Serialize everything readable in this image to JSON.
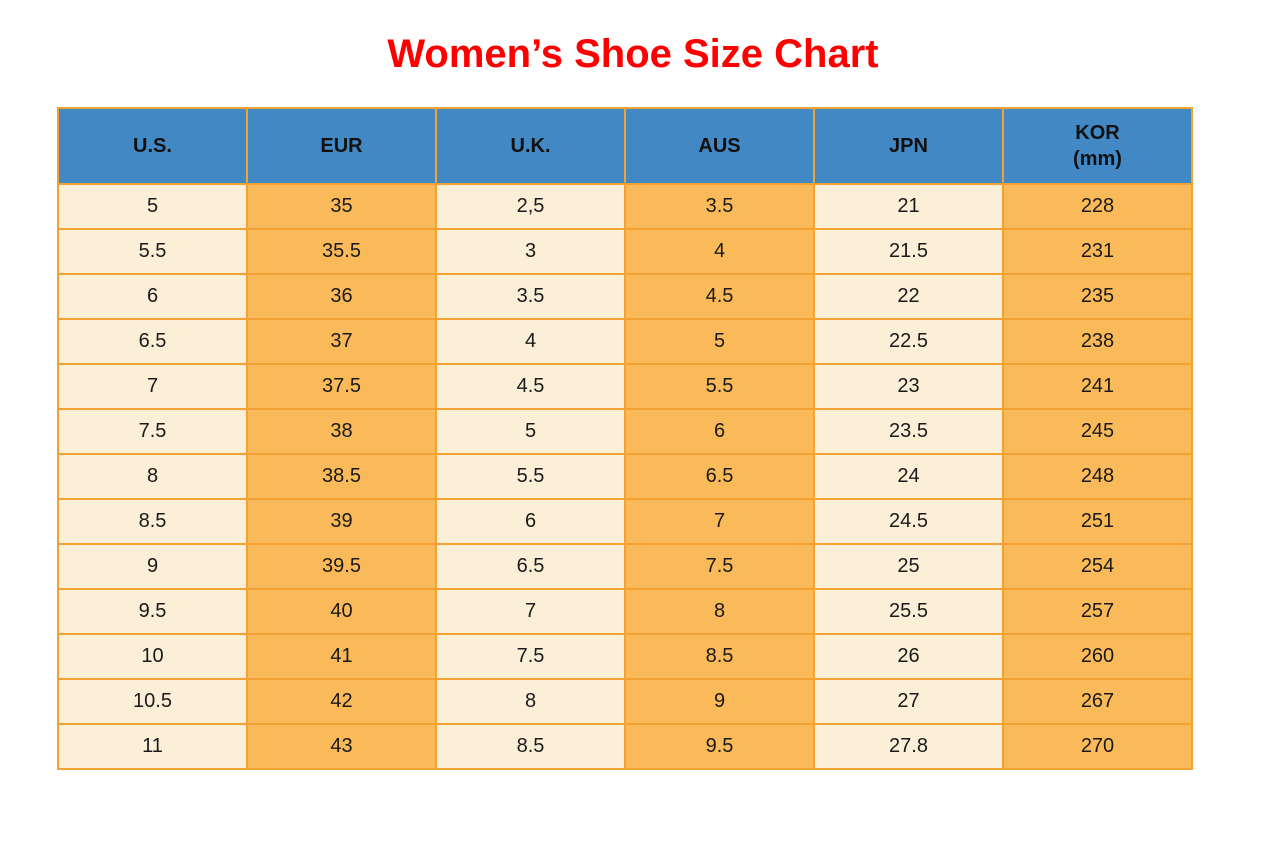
{
  "title": "Women’s Shoe Size Chart",
  "headers": {
    "us": "U.S.",
    "eur": "EUR",
    "uk": "U.K.",
    "aus": "AUS",
    "jpn": "JPN",
    "kor_line1": "KOR",
    "kor_line2": "(mm)"
  },
  "colors": {
    "title_red": "#FF0000",
    "header_blue": "#4288C4",
    "cell_cream": "#FCEFD8",
    "cell_orange": "#FBBA59",
    "border_orange": "#F2A233",
    "text_dark": "#1A1A1A"
  },
  "chart_data": {
    "type": "table",
    "title": "Women’s Shoe Size Chart",
    "columns": [
      "U.S.",
      "EUR",
      "U.K.",
      "AUS",
      "JPN",
      "KOR (mm)"
    ],
    "rows": [
      [
        "5",
        "35",
        "2,5",
        "3.5",
        "21",
        "228"
      ],
      [
        "5.5",
        "35.5",
        "3",
        "4",
        "21.5",
        "231"
      ],
      [
        "6",
        "36",
        "3.5",
        "4.5",
        "22",
        "235"
      ],
      [
        "6.5",
        "37",
        "4",
        "5",
        "22.5",
        "238"
      ],
      [
        "7",
        "37.5",
        "4.5",
        "5.5",
        "23",
        "241"
      ],
      [
        "7.5",
        "38",
        "5",
        "6",
        "23.5",
        "245"
      ],
      [
        "8",
        "38.5",
        "5.5",
        "6.5",
        "24",
        "248"
      ],
      [
        "8.5",
        "39",
        "6",
        "7",
        "24.5",
        "251"
      ],
      [
        "9",
        "39.5",
        "6.5",
        "7.5",
        "25",
        "254"
      ],
      [
        "9.5",
        "40",
        "7",
        "8",
        "25.5",
        "257"
      ],
      [
        "10",
        "41",
        "7.5",
        "8.5",
        "26",
        "260"
      ],
      [
        "10.5",
        "42",
        "8",
        "9",
        "27",
        "267"
      ],
      [
        "11",
        "43",
        "8.5",
        "9.5",
        "27.8",
        "270"
      ]
    ]
  }
}
